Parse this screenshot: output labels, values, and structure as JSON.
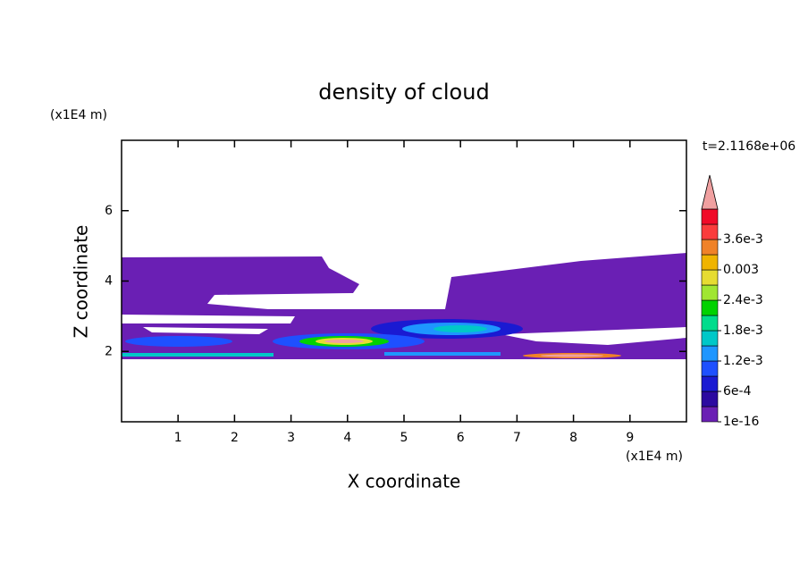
{
  "chart_data": {
    "type": "contour",
    "title": "density of cloud",
    "x_label": "X coordinate",
    "y_label": "Z coordinate",
    "x_unit": "(x1E4 m)",
    "y_unit": "(x1E4 m)",
    "annotation": "t=2.1168e+06",
    "xlim": [
      0,
      10
    ],
    "xticks": [
      1,
      2,
      3,
      4,
      5,
      6,
      7,
      8,
      9
    ],
    "ylim": [
      0,
      8
    ],
    "yticks": [
      2,
      4,
      6
    ],
    "colorbar_ticks": [
      {
        "value": 1e-16,
        "label": "1e-16"
      },
      {
        "value": 0.0006,
        "label": "6e-4"
      },
      {
        "value": 0.0012,
        "label": "1.2e-3"
      },
      {
        "value": 0.0018,
        "label": "1.8e-3"
      },
      {
        "value": 0.0024,
        "label": "2.4e-3"
      },
      {
        "value": 0.003,
        "label": "0.003"
      },
      {
        "value": 0.0036,
        "label": "3.6e-3"
      }
    ],
    "colors": [
      "#6a1fb4",
      "#2c0aa0",
      "#1a1ad2",
      "#1e50ff",
      "#1e96ff",
      "#00c8c8",
      "#00dc8c",
      "#00d200",
      "#a0e632",
      "#e6dc32",
      "#f0b400",
      "#f08228",
      "#fa3c3c",
      "#f00a28",
      "#f0a0a0"
    ]
  }
}
